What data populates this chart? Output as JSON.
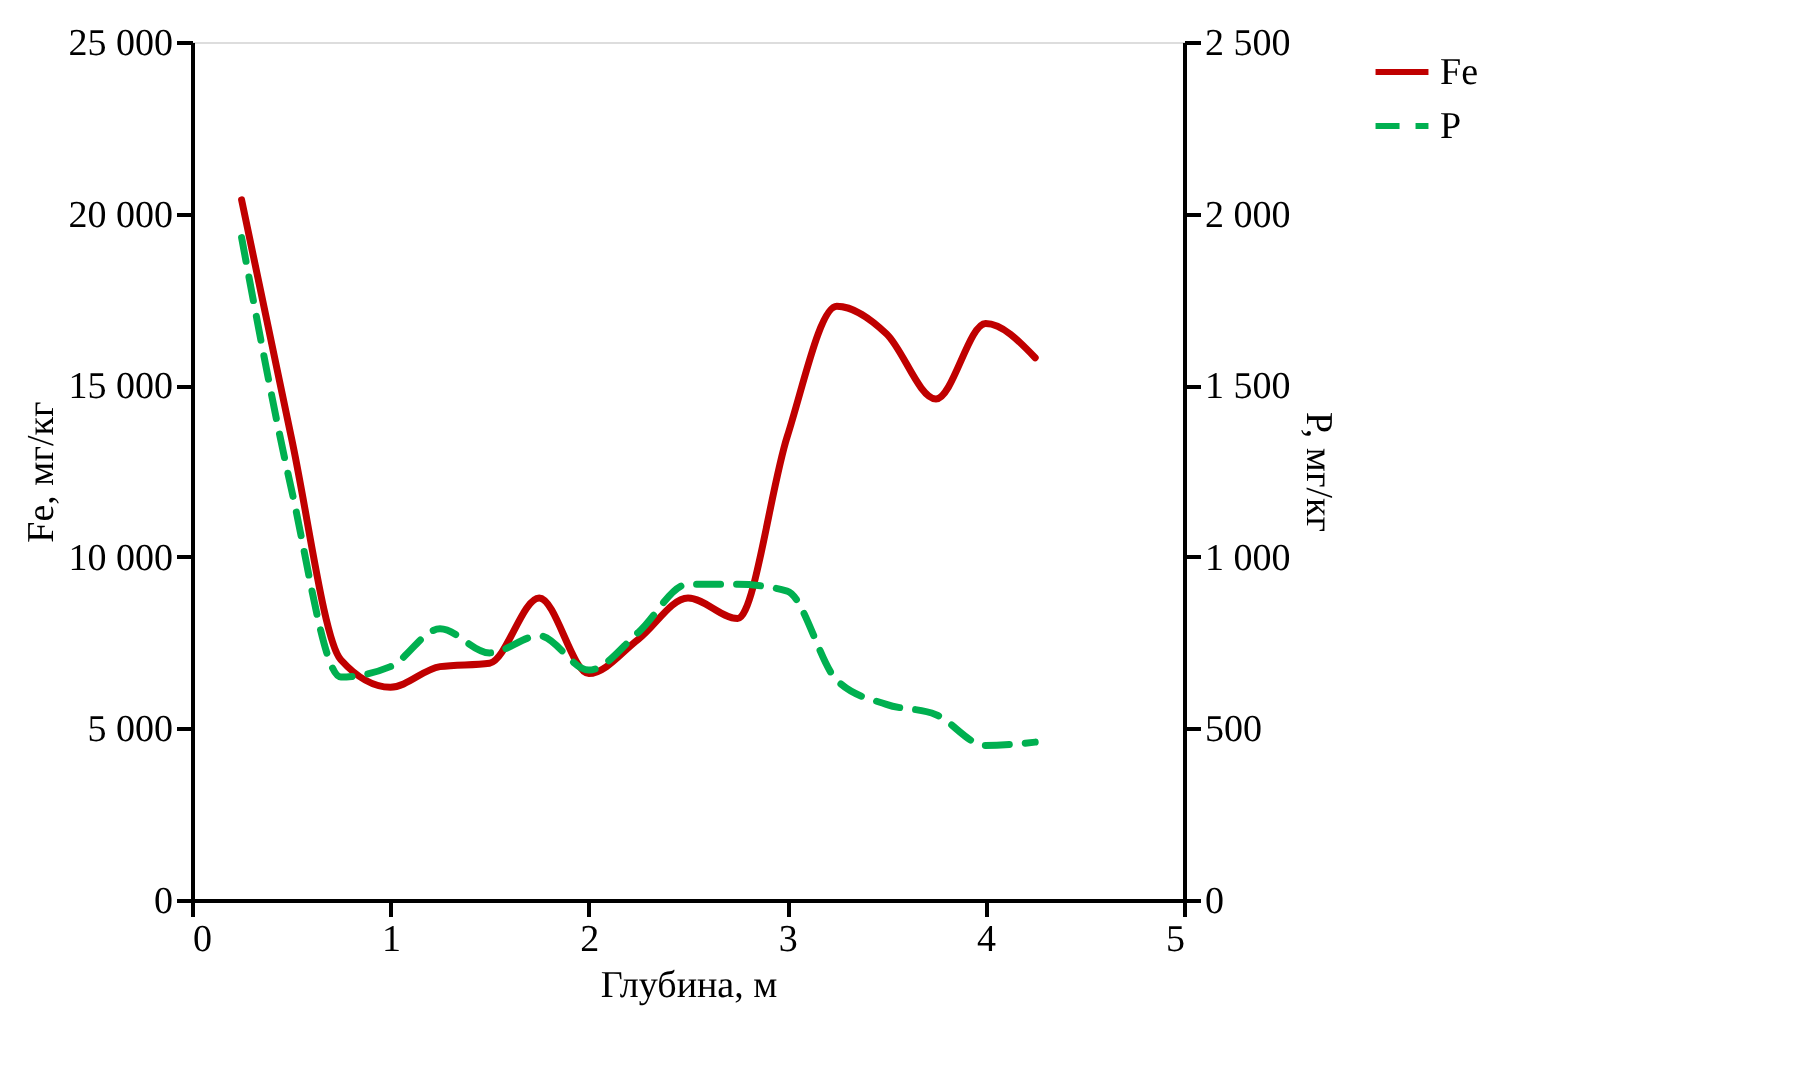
{
  "chart_data": {
    "type": "line",
    "xlabel": "Глубина, м",
    "ylabel": "Fe, мг/кг",
    "y2label": "P, мг/кг",
    "x": [
      0.25,
      0.5,
      0.75,
      1.0,
      1.25,
      1.5,
      1.75,
      2.0,
      2.25,
      2.5,
      2.75,
      3.0,
      3.25,
      3.5,
      3.75,
      4.0,
      4.25
    ],
    "series": [
      {
        "name": "Fe",
        "color": "#c00000",
        "line_style": "solid",
        "values": [
          20400,
          13500,
          7000,
          6200,
          6800,
          6900,
          8800,
          6600,
          7600,
          8800,
          8200,
          13500,
          17300,
          16500,
          14600,
          16800,
          15800
        ]
      },
      {
        "name": "P",
        "color": "#00b050",
        "line_style": "dashed",
        "axis": "y2",
        "values": [
          1930,
          1200,
          650,
          680,
          790,
          720,
          770,
          670,
          780,
          920,
          920,
          900,
          640,
          570,
          540,
          450,
          460
        ]
      }
    ],
    "xlim": [
      0,
      5
    ],
    "xticks": [
      0,
      1,
      2,
      3,
      4,
      5
    ],
    "ylim": [
      0,
      25000
    ],
    "yticks": [
      0,
      {
        "value": 5000,
        "label": "5 000"
      },
      {
        "value": 10000,
        "label": "10 000"
      },
      {
        "value": 15000,
        "label": "15 000"
      },
      {
        "value": 20000,
        "label": "20 000"
      },
      {
        "value": 25000,
        "label": "25 000"
      }
    ],
    "y2lim": [
      0,
      2500
    ],
    "y2ticks": [
      0,
      500,
      {
        "value": 1000,
        "label": "1 000"
      },
      {
        "value": 1500,
        "label": "1 500"
      },
      {
        "value": 2000,
        "label": "2 000"
      },
      {
        "value": 2500,
        "label": "2 500"
      }
    ],
    "grid": false,
    "legend": "right",
    "marker": "none"
  }
}
